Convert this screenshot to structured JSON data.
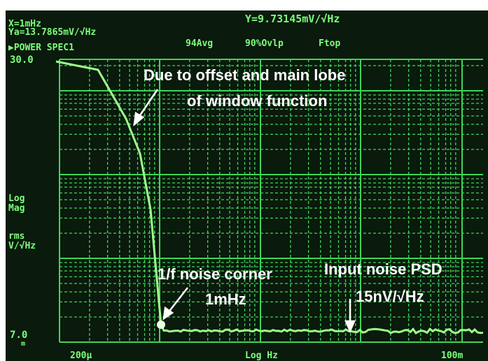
{
  "header": {
    "cursor_x": "X=1mHz",
    "cursor_ya": "Ya=13.7865mV/√Hz",
    "cursor_y": "Y=9.73145mV/√Hz",
    "trace": "▶POWER SPEC1",
    "averages": "94Avg",
    "overlap": "90%Ovlp",
    "window": "Ftop"
  },
  "axis": {
    "y_top": "30.0",
    "y_bottom": "7.0",
    "y_bottom_unit": "m",
    "y_label": [
      "Log",
      "Mag",
      "rms",
      "V/√Hz"
    ],
    "x_left": "200μ",
    "x_label": "Log Hz",
    "x_right": "100m"
  },
  "annotations": {
    "window_note": [
      "Due to offset and main lobe",
      "of window function"
    ],
    "corner_note": [
      "1/f noise corner",
      "1mHz"
    ],
    "noise_note": [
      "Input noise PSD",
      "15nV/√Hz"
    ]
  }
}
